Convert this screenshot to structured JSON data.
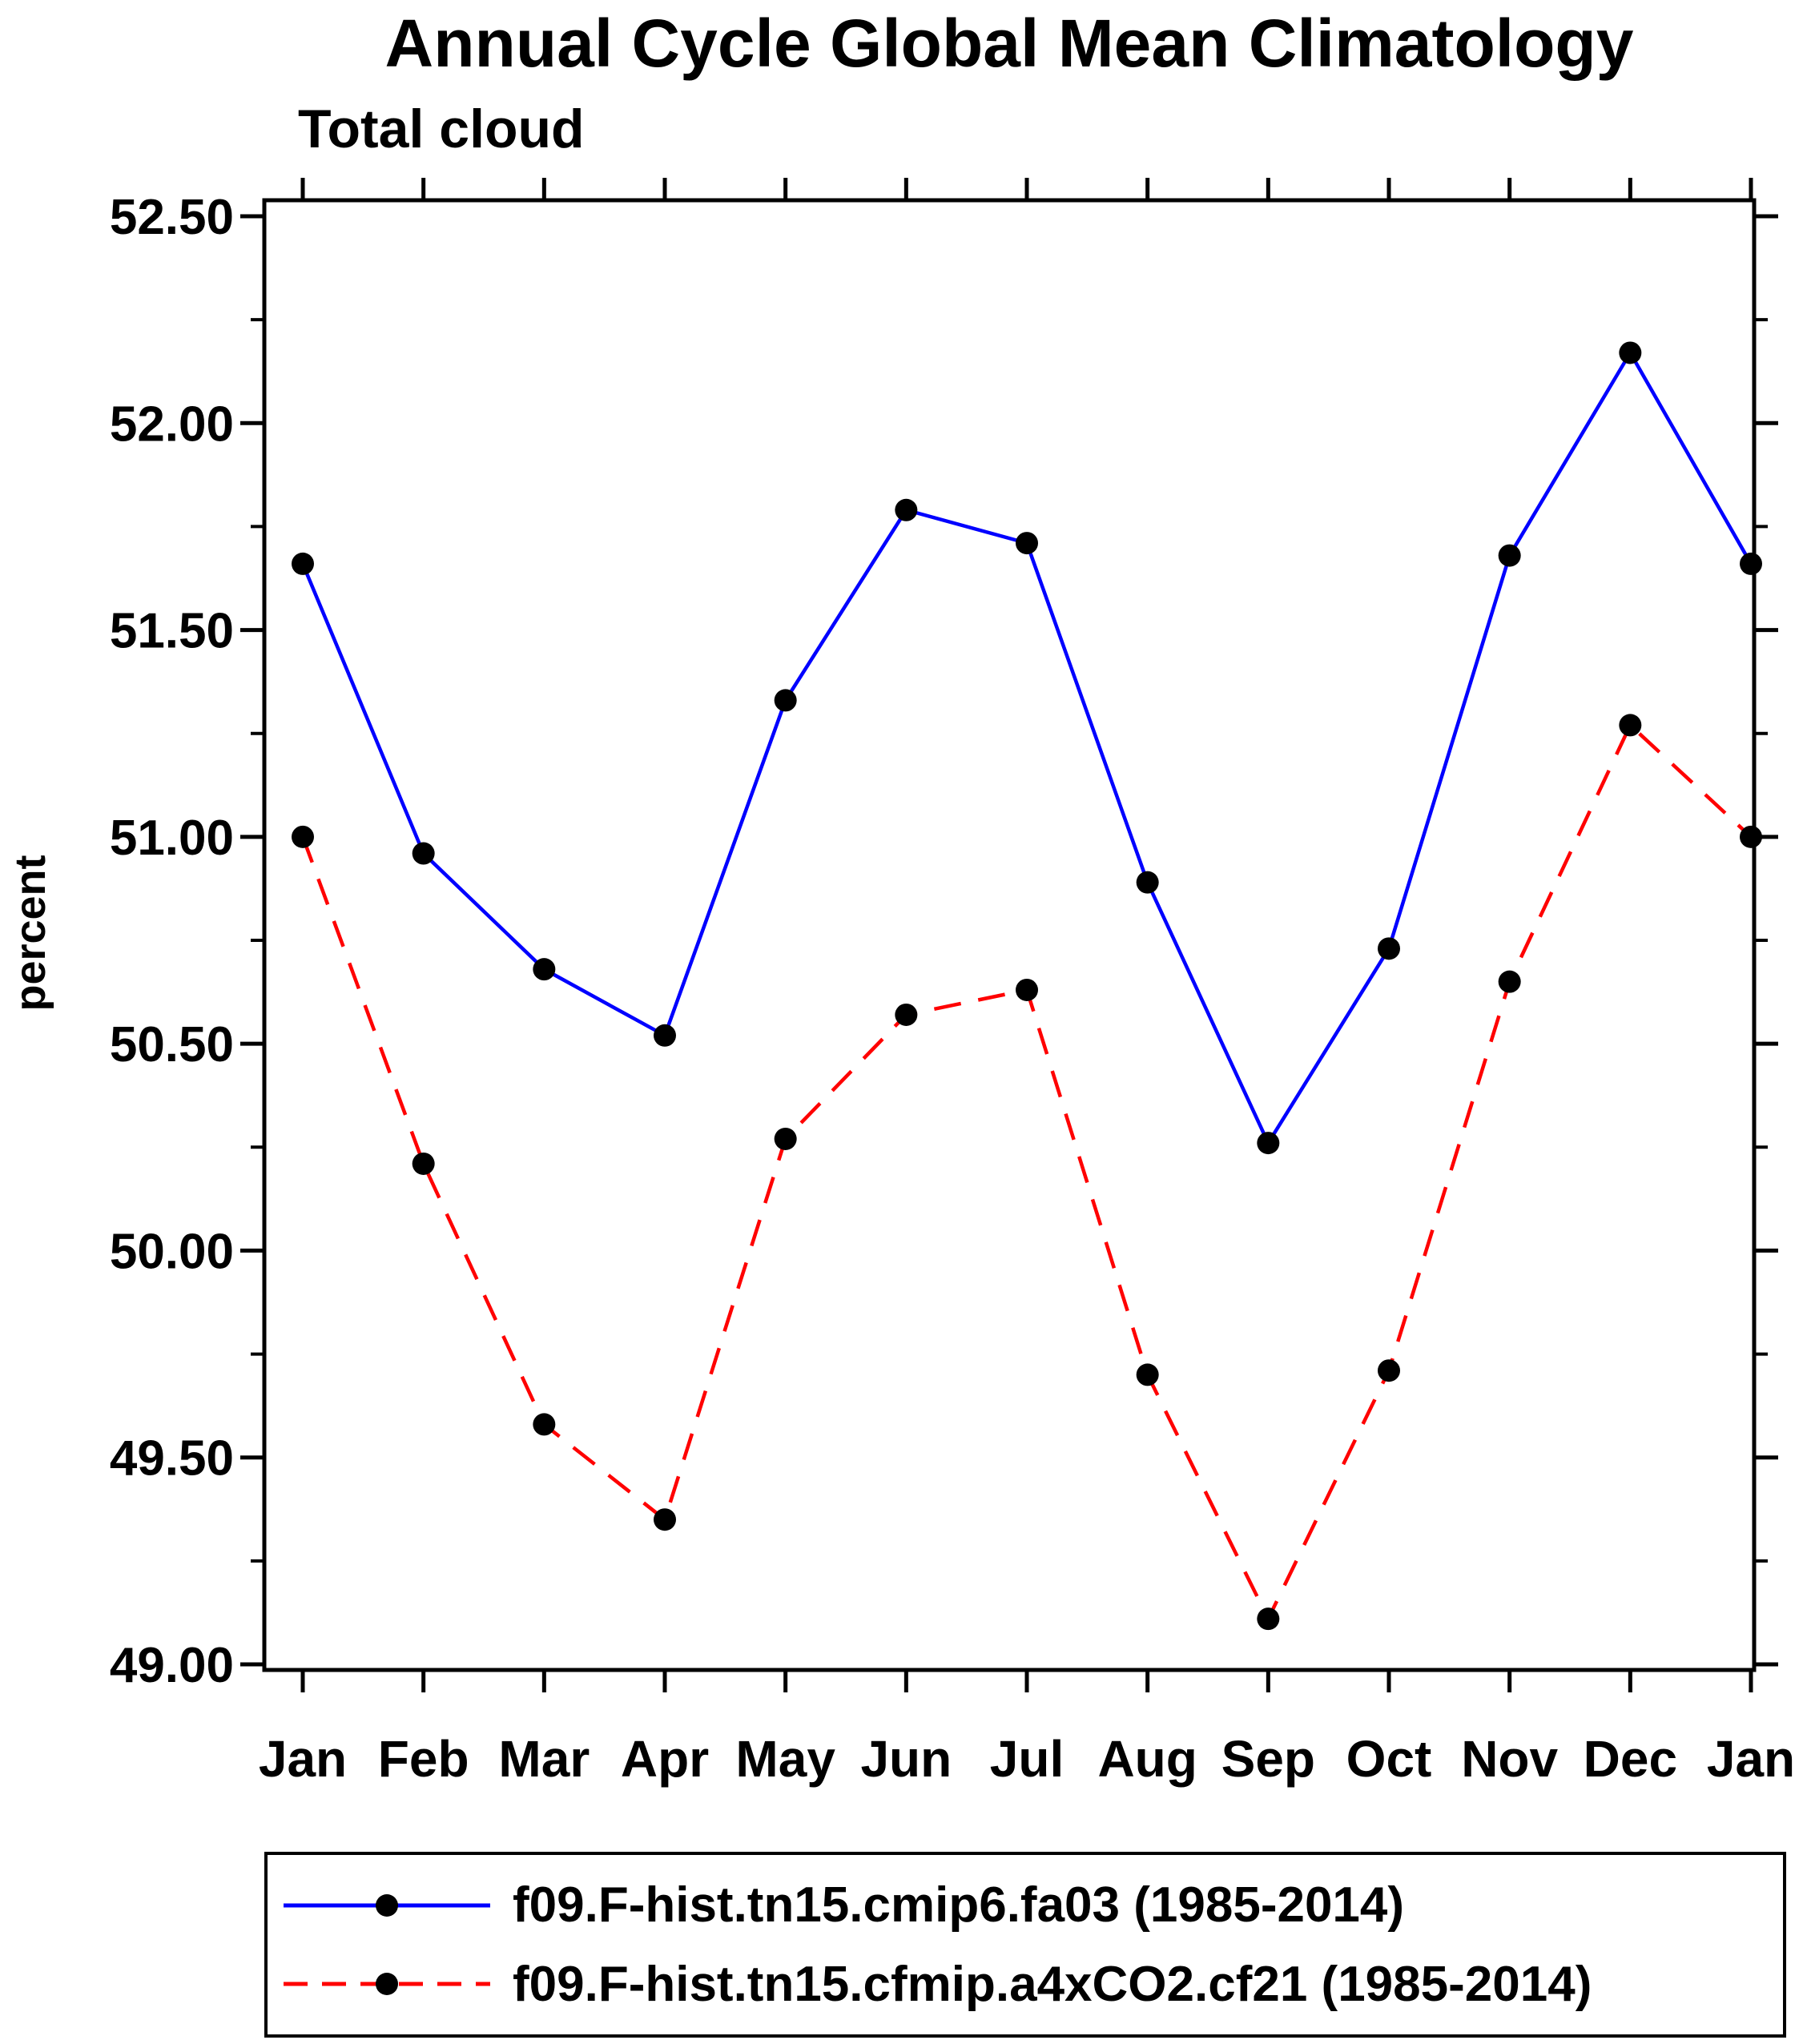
{
  "title": "Annual Cycle Global Mean Climatology",
  "subtitle": "Total cloud",
  "ylabel": "percent",
  "colors": {
    "series1": "#0000ff",
    "series2": "#ff0000",
    "marker": "#000000",
    "axis": "#000000",
    "background": "#ffffff"
  },
  "legend": {
    "items": [
      {
        "label": "f09.F-hist.tn15.cmip6.fa03 (1985-2014)"
      },
      {
        "label": "f09.F-hist.tn15.cfmip.a4xCO2.cf21 (1985-2014)"
      }
    ]
  },
  "chart_data": {
    "type": "line",
    "title": "Annual Cycle Global Mean Climatology",
    "subtitle": "Total cloud",
    "ylabel": "percent",
    "xlabel": "",
    "categories": [
      "Jan",
      "Feb",
      "Mar",
      "Apr",
      "May",
      "Jun",
      "Jul",
      "Aug",
      "Sep",
      "Oct",
      "Nov",
      "Dec",
      "Jan"
    ],
    "series": [
      {
        "name": "f09.F-hist.tn15.cmip6.fa03 (1985-2014)",
        "color": "#0000ff",
        "style": "solid",
        "marker_color": "#000000",
        "values": [
          51.66,
          50.96,
          50.68,
          50.52,
          51.33,
          51.79,
          51.71,
          50.89,
          50.26,
          50.73,
          51.68,
          52.17,
          51.66
        ]
      },
      {
        "name": "f09.F-hist.tn15.cfmip.a4xCO2.cf21 (1985-2014)",
        "color": "#ff0000",
        "style": "dashed",
        "marker_color": "#000000",
        "values": [
          51.0,
          50.21,
          49.58,
          49.35,
          50.27,
          50.57,
          50.63,
          49.7,
          49.11,
          49.71,
          50.65,
          51.27,
          51.0
        ]
      }
    ],
    "ylim": [
      49.0,
      52.5
    ],
    "yticks": [
      49.0,
      49.5,
      50.0,
      50.5,
      51.0,
      51.5,
      52.0,
      52.5
    ],
    "ytick_labels": [
      "49.00",
      "49.50",
      "50.00",
      "50.50",
      "51.00",
      "51.50",
      "52.00",
      "52.50"
    ],
    "minor_tick_step": 0.25,
    "grid": false,
    "legend_position": "bottom"
  }
}
